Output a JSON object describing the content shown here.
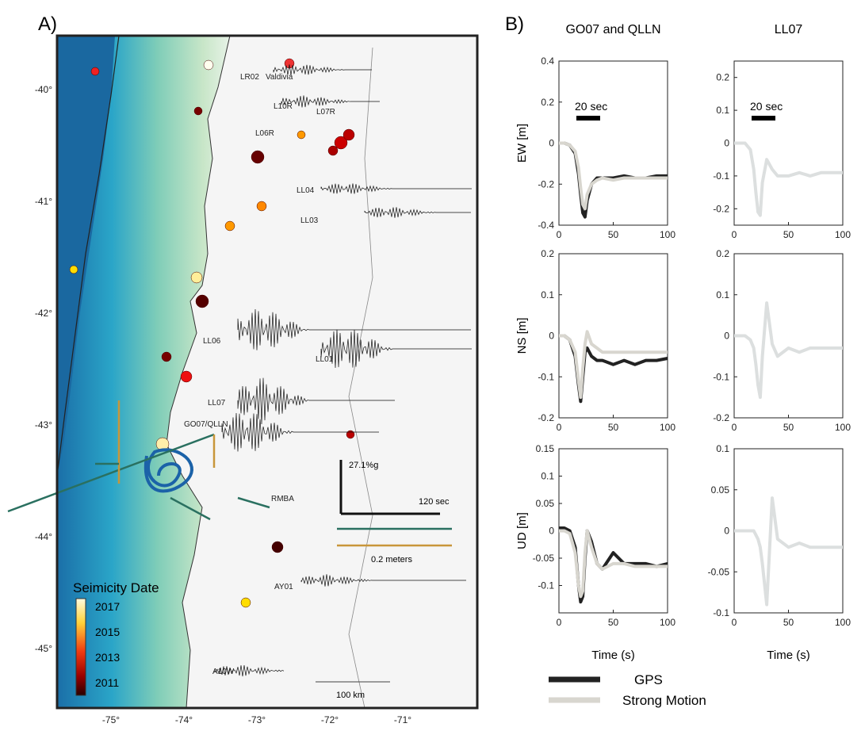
{
  "map": {
    "label": "A)",
    "lon_ticks": [
      "-75°",
      "-74°",
      "-73°",
      "-72°",
      "-71°"
    ],
    "lat_ticks": [
      "-40°",
      "-41°",
      "-42°",
      "-43°",
      "-44°",
      "-45°"
    ],
    "stations": [
      "LR02",
      "Valdivia",
      "L10R",
      "L07R",
      "L06R",
      "LL04",
      "LL03",
      "LL06",
      "LL01",
      "LL07",
      "GO07/QLLN",
      "RMBA",
      "AY01",
      "A10W"
    ],
    "amplitude": "27.1%g",
    "time_scale": "120 sec",
    "displacement_scale": "0.2 meters",
    "distance_scale": "100 km",
    "legend_title": "Seimicity Date",
    "colorbar_ticks": [
      "2017",
      "2015",
      "2013",
      "2011"
    ]
  },
  "panel_b": {
    "label": "B)"
  },
  "chart_data": [
    {
      "type": "line",
      "title": "GO07 and QLLN",
      "y_label": "EW [m]",
      "annotation": "20 sec",
      "x": [
        0,
        5,
        10,
        15,
        18,
        20,
        22,
        24,
        26,
        30,
        35,
        40,
        50,
        60,
        70,
        80,
        90,
        100
      ],
      "series": [
        {
          "name": "GPS",
          "color": "#222222",
          "values": [
            0,
            0,
            -0.01,
            -0.05,
            -0.15,
            -0.25,
            -0.34,
            -0.36,
            -0.28,
            -0.2,
            -0.17,
            -0.17,
            -0.17,
            -0.16,
            -0.17,
            -0.17,
            -0.16,
            -0.16
          ]
        },
        {
          "name": "Strong Motion",
          "color": "#d8d6cf",
          "values": [
            0,
            0,
            -0.01,
            -0.04,
            -0.12,
            -0.22,
            -0.3,
            -0.32,
            -0.25,
            -0.2,
            -0.18,
            -0.17,
            -0.18,
            -0.17,
            -0.17,
            -0.17,
            -0.17,
            -0.17
          ]
        }
      ],
      "xlim": [
        0,
        100
      ],
      "xticks": [
        0,
        50,
        100
      ],
      "ylim": [
        -0.4,
        0.4
      ],
      "yticks": [
        -0.4,
        -0.2,
        0,
        0.2,
        0.4
      ]
    },
    {
      "type": "line",
      "title": "LL07",
      "annotation": "20 sec",
      "x": [
        0,
        5,
        10,
        15,
        18,
        20,
        22,
        24,
        26,
        30,
        35,
        40,
        50,
        60,
        70,
        80,
        90,
        100
      ],
      "series": [
        {
          "name": "Strong Motion",
          "color": "#dcdfdf",
          "values": [
            0,
            0,
            0,
            -0.02,
            -0.08,
            -0.15,
            -0.21,
            -0.22,
            -0.12,
            -0.05,
            -0.08,
            -0.1,
            -0.1,
            -0.09,
            -0.1,
            -0.09,
            -0.09,
            -0.09
          ]
        }
      ],
      "xlim": [
        0,
        100
      ],
      "xticks": [
        0,
        50,
        100
      ],
      "ylim": [
        -0.25,
        0.25
      ],
      "yticks": [
        -0.2,
        -0.1,
        0,
        0.1,
        0.2
      ]
    },
    {
      "type": "line",
      "y_label": "NS [m]",
      "x": [
        0,
        5,
        10,
        15,
        18,
        20,
        22,
        24,
        26,
        30,
        35,
        40,
        50,
        60,
        70,
        80,
        90,
        100
      ],
      "series": [
        {
          "name": "GPS",
          "color": "#222222",
          "values": [
            0,
            0,
            -0.01,
            -0.05,
            -0.12,
            -0.16,
            -0.1,
            -0.04,
            -0.03,
            -0.05,
            -0.06,
            -0.06,
            -0.07,
            -0.06,
            -0.07,
            -0.06,
            -0.06,
            -0.055
          ]
        },
        {
          "name": "Strong Motion",
          "color": "#d8d6cf",
          "values": [
            0,
            0,
            -0.01,
            -0.04,
            -0.11,
            -0.15,
            -0.08,
            -0.02,
            0.01,
            -0.02,
            -0.03,
            -0.04,
            -0.04,
            -0.04,
            -0.04,
            -0.04,
            -0.04,
            -0.04
          ]
        }
      ],
      "xlim": [
        0,
        100
      ],
      "xticks": [
        0,
        50,
        100
      ],
      "ylim": [
        -0.2,
        0.2
      ],
      "yticks": [
        -0.2,
        -0.1,
        0,
        0.1,
        0.2
      ]
    },
    {
      "type": "line",
      "x": [
        0,
        5,
        10,
        15,
        18,
        20,
        22,
        24,
        26,
        30,
        35,
        40,
        50,
        60,
        70,
        80,
        90,
        100
      ],
      "series": [
        {
          "name": "Strong Motion",
          "color": "#dcdfdf",
          "values": [
            0,
            0,
            0,
            -0.01,
            -0.03,
            -0.07,
            -0.12,
            -0.15,
            -0.05,
            0.08,
            -0.02,
            -0.05,
            -0.03,
            -0.04,
            -0.03,
            -0.03,
            -0.03,
            -0.03
          ]
        }
      ],
      "xlim": [
        0,
        100
      ],
      "xticks": [
        0,
        50,
        100
      ],
      "ylim": [
        -0.2,
        0.2
      ],
      "yticks": [
        -0.2,
        -0.1,
        0,
        0.1,
        0.2
      ]
    },
    {
      "type": "line",
      "y_label": "UD [m]",
      "x_label": "Time (s)",
      "x": [
        0,
        5,
        10,
        15,
        18,
        20,
        22,
        24,
        26,
        30,
        35,
        40,
        50,
        60,
        70,
        80,
        90,
        100
      ],
      "series": [
        {
          "name": "GPS",
          "color": "#222222",
          "values": [
            0.005,
            0.005,
            0,
            -0.03,
            -0.1,
            -0.13,
            -0.12,
            -0.05,
            0,
            -0.02,
            -0.06,
            -0.07,
            -0.04,
            -0.06,
            -0.06,
            -0.06,
            -0.065,
            -0.06
          ]
        },
        {
          "name": "Strong Motion",
          "color": "#d8d6cf",
          "values": [
            0,
            0,
            -0.005,
            -0.04,
            -0.1,
            -0.12,
            -0.11,
            -0.04,
            0,
            -0.03,
            -0.06,
            -0.07,
            -0.06,
            -0.06,
            -0.065,
            -0.065,
            -0.065,
            -0.065
          ]
        }
      ],
      "xlim": [
        0,
        100
      ],
      "xticks": [
        0,
        50,
        100
      ],
      "ylim": [
        -0.15,
        0.15
      ],
      "yticks": [
        -0.1,
        -0.05,
        0,
        0.05,
        0.1,
        0.15
      ]
    },
    {
      "type": "line",
      "x_label": "Time (s)",
      "x": [
        0,
        5,
        10,
        15,
        18,
        20,
        22,
        24,
        26,
        30,
        35,
        40,
        50,
        60,
        70,
        80,
        90,
        100
      ],
      "series": [
        {
          "name": "Strong Motion",
          "color": "#dcdfdf",
          "values": [
            0,
            0,
            0,
            0,
            0,
            -0.005,
            -0.01,
            -0.02,
            -0.04,
            -0.09,
            0.04,
            -0.01,
            -0.02,
            -0.015,
            -0.02,
            -0.02,
            -0.02,
            -0.02
          ]
        }
      ],
      "xlim": [
        0,
        100
      ],
      "xticks": [
        0,
        50,
        100
      ],
      "ylim": [
        -0.1,
        0.1
      ],
      "yticks": [
        -0.1,
        -0.05,
        0,
        0.05,
        0.1
      ]
    }
  ]
}
